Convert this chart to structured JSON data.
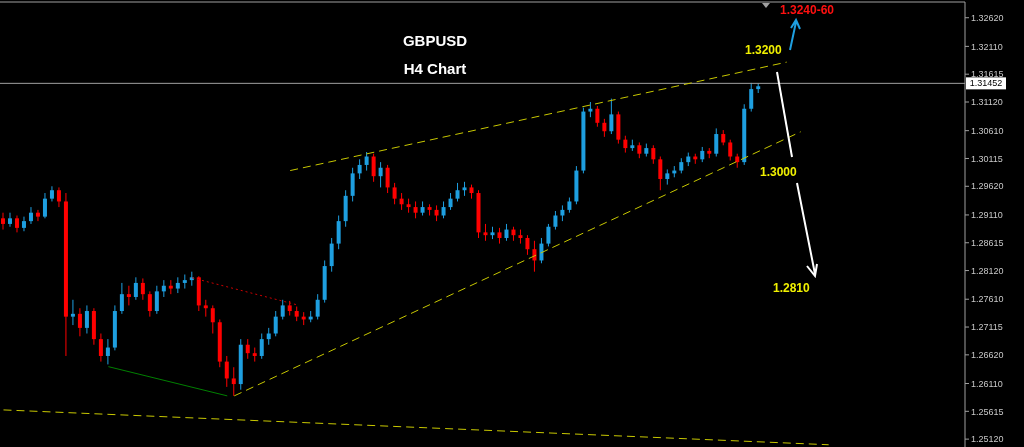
{
  "chart_data": {
    "type": "candlestick",
    "title": "GBPUSD",
    "subtitle": "H4 Chart",
    "categories": [
      null,
      null,
      null,
      null,
      null,
      null,
      null,
      null,
      null,
      null,
      null,
      null,
      null,
      null,
      null,
      null,
      null,
      null,
      null,
      null,
      null,
      null,
      null,
      null,
      null,
      null,
      null,
      null,
      null,
      null,
      null,
      null,
      null,
      null,
      null,
      null,
      null,
      null,
      null,
      null,
      null,
      null,
      null,
      null,
      null,
      null,
      null,
      null,
      null,
      null,
      null,
      null,
      null,
      null,
      null,
      null,
      null,
      null,
      null,
      null,
      null,
      null,
      null,
      null,
      null,
      null,
      null,
      null,
      null,
      null,
      null,
      null,
      null,
      null,
      null,
      null,
      null,
      null,
      null,
      null,
      null,
      null,
      null,
      null,
      null,
      null,
      null,
      null,
      null,
      null,
      null,
      null,
      null,
      null,
      null,
      null,
      null,
      null,
      null,
      null,
      null,
      null,
      null,
      null,
      null,
      null,
      null,
      null,
      null,
      null,
      null,
      null,
      null,
      null,
      null,
      null,
      null,
      null,
      null,
      null,
      null,
      null,
      null,
      null,
      null,
      null,
      null,
      null,
      null,
      null,
      null,
      null,
      null,
      null,
      null,
      null,
      null,
      null
    ],
    "ohlc": [
      [
        1.2905,
        1.2915,
        1.2885,
        1.2895
      ],
      [
        1.2895,
        1.2915,
        1.289,
        1.2905
      ],
      [
        1.2905,
        1.291,
        1.288,
        1.2888
      ],
      [
        1.2888,
        1.2908,
        1.2882,
        1.29
      ],
      [
        1.29,
        1.2925,
        1.2895,
        1.2915
      ],
      [
        1.2915,
        1.292,
        1.29,
        1.2908
      ],
      [
        1.2908,
        1.295,
        1.2905,
        1.294
      ],
      [
        1.294,
        1.2962,
        1.2935,
        1.2955
      ],
      [
        1.2955,
        1.296,
        1.2925,
        1.2935
      ],
      [
        1.2935,
        1.295,
        1.266,
        1.273
      ],
      [
        1.273,
        1.276,
        1.2715,
        1.2735
      ],
      [
        1.2735,
        1.2745,
        1.2695,
        1.271
      ],
      [
        1.271,
        1.275,
        1.27,
        1.274
      ],
      [
        1.274,
        1.2745,
        1.268,
        1.269
      ],
      [
        1.269,
        1.27,
        1.265,
        1.266
      ],
      [
        1.266,
        1.269,
        1.2645,
        1.2675
      ],
      [
        1.2675,
        1.275,
        1.267,
        1.274
      ],
      [
        1.274,
        1.279,
        1.2735,
        1.277
      ],
      [
        1.277,
        1.2785,
        1.275,
        1.2765
      ],
      [
        1.2765,
        1.28,
        1.276,
        1.279
      ],
      [
        1.279,
        1.2798,
        1.276,
        1.277
      ],
      [
        1.277,
        1.2775,
        1.273,
        1.274
      ],
      [
        1.274,
        1.2785,
        1.2735,
        1.2775
      ],
      [
        1.2775,
        1.2795,
        1.2765,
        1.2785
      ],
      [
        1.2785,
        1.2795,
        1.277,
        1.278
      ],
      [
        1.278,
        1.28,
        1.2772,
        1.279
      ],
      [
        1.279,
        1.2805,
        1.278,
        1.2795
      ],
      [
        1.2795,
        1.281,
        1.2785,
        1.28
      ],
      [
        1.28,
        1.2802,
        1.274,
        1.275
      ],
      [
        1.275,
        1.276,
        1.273,
        1.2745
      ],
      [
        1.2745,
        1.275,
        1.27,
        1.272
      ],
      [
        1.272,
        1.2725,
        1.264,
        1.265
      ],
      [
        1.265,
        1.266,
        1.2605,
        1.262
      ],
      [
        1.262,
        1.264,
        1.2589,
        1.261
      ],
      [
        1.261,
        1.269,
        1.26,
        1.268
      ],
      [
        1.268,
        1.269,
        1.2655,
        1.2665
      ],
      [
        1.2665,
        1.2675,
        1.265,
        1.266
      ],
      [
        1.266,
        1.27,
        1.2655,
        1.269
      ],
      [
        1.269,
        1.271,
        1.268,
        1.27
      ],
      [
        1.27,
        1.274,
        1.2695,
        1.273
      ],
      [
        1.273,
        1.276,
        1.2725,
        1.275
      ],
      [
        1.275,
        1.2758,
        1.2732,
        1.274
      ],
      [
        1.274,
        1.2748,
        1.2722,
        1.273
      ],
      [
        1.273,
        1.2738,
        1.2715,
        1.2725
      ],
      [
        1.2725,
        1.274,
        1.272,
        1.273
      ],
      [
        1.273,
        1.277,
        1.2725,
        1.276
      ],
      [
        1.276,
        1.283,
        1.2755,
        1.282
      ],
      [
        1.282,
        1.287,
        1.281,
        1.286
      ],
      [
        1.286,
        1.291,
        1.285,
        1.29
      ],
      [
        1.29,
        1.2955,
        1.289,
        1.2945
      ],
      [
        1.2945,
        1.2995,
        1.2935,
        1.2985
      ],
      [
        1.2985,
        1.301,
        1.2975,
        1.3
      ],
      [
        1.3,
        1.3023,
        1.299,
        1.3015
      ],
      [
        1.3015,
        1.302,
        1.297,
        1.298
      ],
      [
        1.298,
        1.3005,
        1.296,
        1.2995
      ],
      [
        1.2995,
        1.3,
        1.295,
        1.296
      ],
      [
        1.296,
        1.2968,
        1.293,
        1.294
      ],
      [
        1.294,
        1.295,
        1.292,
        1.293
      ],
      [
        1.293,
        1.294,
        1.2915,
        1.2925
      ],
      [
        1.2925,
        1.2935,
        1.2905,
        1.2915
      ],
      [
        1.2915,
        1.2935,
        1.291,
        1.2925
      ],
      [
        1.2925,
        1.293,
        1.291,
        1.292
      ],
      [
        1.292,
        1.2928,
        1.29,
        1.291
      ],
      [
        1.291,
        1.2935,
        1.2905,
        1.2925
      ],
      [
        1.2925,
        1.295,
        1.292,
        1.294
      ],
      [
        1.294,
        1.2968,
        1.2935,
        1.2955
      ],
      [
        1.2955,
        1.297,
        1.2945,
        1.296
      ],
      [
        1.296,
        1.2965,
        1.294,
        1.295
      ],
      [
        1.295,
        1.2955,
        1.287,
        1.288
      ],
      [
        1.288,
        1.2895,
        1.2865,
        1.2875
      ],
      [
        1.2875,
        1.289,
        1.2868,
        1.288
      ],
      [
        1.288,
        1.2888,
        1.286,
        1.287
      ],
      [
        1.287,
        1.2895,
        1.2865,
        1.2885
      ],
      [
        1.2885,
        1.289,
        1.2865,
        1.2875
      ],
      [
        1.2875,
        1.2885,
        1.286,
        1.287
      ],
      [
        1.287,
        1.2875,
        1.284,
        1.285
      ],
      [
        1.285,
        1.2865,
        1.281,
        1.283
      ],
      [
        1.283,
        1.287,
        1.2825,
        1.286
      ],
      [
        1.286,
        1.2895,
        1.2855,
        1.289
      ],
      [
        1.289,
        1.2918,
        1.2885,
        1.291
      ],
      [
        1.291,
        1.2928,
        1.29,
        1.292
      ],
      [
        1.292,
        1.2942,
        1.2915,
        1.2935
      ],
      [
        1.2935,
        1.2998,
        1.293,
        1.299
      ],
      [
        1.299,
        1.3102,
        1.2985,
        1.3095
      ],
      [
        1.3095,
        1.3112,
        1.3085,
        1.31
      ],
      [
        1.31,
        1.3105,
        1.3068,
        1.3075
      ],
      [
        1.3075,
        1.3082,
        1.305,
        1.306
      ],
      [
        1.306,
        1.3118,
        1.3055,
        1.309
      ],
      [
        1.309,
        1.3095,
        1.3038,
        1.3045
      ],
      [
        1.3045,
        1.3052,
        1.3022,
        1.303
      ],
      [
        1.303,
        1.3045,
        1.3025,
        1.3035
      ],
      [
        1.3035,
        1.304,
        1.3012,
        1.302
      ],
      [
        1.302,
        1.3038,
        1.3015,
        1.303
      ],
      [
        1.303,
        1.3035,
        1.3002,
        1.301
      ],
      [
        1.301,
        1.3015,
        1.2955,
        1.2975
      ],
      [
        1.2975,
        1.2992,
        1.2965,
        1.2985
      ],
      [
        1.2985,
        1.2998,
        1.2978,
        1.299
      ],
      [
        1.299,
        1.3012,
        1.2985,
        1.3005
      ],
      [
        1.3005,
        1.3022,
        1.2998,
        1.3015
      ],
      [
        1.3015,
        1.302,
        1.3002,
        1.301
      ],
      [
        1.301,
        1.3032,
        1.3005,
        1.3025
      ],
      [
        1.3025,
        1.303,
        1.3012,
        1.302
      ],
      [
        1.302,
        1.3065,
        1.3015,
        1.3055
      ],
      [
        1.3055,
        1.3062,
        1.3035,
        1.304
      ],
      [
        1.304,
        1.3045,
        1.3008,
        1.3015
      ],
      [
        1.3015,
        1.302,
        1.2995,
        1.3005
      ],
      [
        1.3005,
        1.3108,
        1.3,
        1.31
      ],
      [
        1.31,
        1.3146,
        1.3095,
        1.3135
      ],
      [
        1.3135,
        1.3145,
        1.3128,
        1.314
      ],
      null,
      null,
      null,
      null,
      null,
      null,
      null,
      null,
      null,
      null,
      null,
      null,
      null,
      null,
      null,
      null,
      null,
      null,
      null,
      null,
      null,
      null,
      null,
      null,
      null,
      null,
      null,
      null,
      null
    ],
    "series": [
      {
        "type": "line",
        "color": "#c8c800",
        "line_style": "dashed",
        "values": [
          null,
          null,
          null,
          null,
          null,
          null,
          null,
          null,
          null,
          null,
          null,
          null,
          null,
          null,
          null,
          null,
          null,
          null,
          null,
          null,
          null,
          null,
          null,
          null,
          null,
          null,
          null,
          null,
          null,
          null,
          null,
          null,
          null,
          null,
          null,
          null,
          null,
          null,
          null,
          null,
          null,
          1.299,
          null,
          null,
          null,
          null,
          null,
          null,
          null,
          null,
          null,
          null,
          null,
          null,
          null,
          null,
          null,
          null,
          null,
          null,
          null,
          null,
          null,
          null,
          null,
          null,
          null,
          null,
          null,
          null,
          null,
          null,
          null,
          null,
          null,
          null,
          null,
          null,
          null,
          null,
          null,
          null,
          null,
          null,
          null,
          null,
          null,
          null,
          null,
          null,
          null,
          null,
          null,
          null,
          null,
          null,
          null,
          null,
          null,
          null,
          null,
          null,
          null,
          null,
          null,
          null,
          null,
          null,
          null,
          null,
          null,
          null,
          1.3183,
          null,
          null,
          null,
          null,
          null,
          null,
          null,
          null,
          null,
          null,
          null,
          null,
          null,
          null,
          null,
          null,
          null,
          null,
          null,
          null,
          null,
          null,
          null,
          null,
          null
        ]
      },
      {
        "type": "line",
        "color": "#c8c800",
        "line_style": "dashed",
        "values": [
          null,
          null,
          null,
          null,
          null,
          null,
          null,
          null,
          null,
          null,
          null,
          null,
          null,
          null,
          null,
          null,
          null,
          null,
          null,
          null,
          null,
          null,
          null,
          null,
          null,
          null,
          null,
          null,
          null,
          null,
          null,
          null,
          null,
          1.2589,
          null,
          null,
          null,
          null,
          null,
          null,
          null,
          null,
          null,
          null,
          null,
          null,
          null,
          null,
          null,
          null,
          null,
          null,
          null,
          null,
          null,
          null,
          null,
          null,
          null,
          null,
          null,
          null,
          null,
          null,
          null,
          null,
          null,
          null,
          null,
          null,
          null,
          null,
          null,
          null,
          null,
          null,
          null,
          null,
          null,
          null,
          null,
          null,
          null,
          null,
          null,
          null,
          null,
          null,
          null,
          null,
          null,
          null,
          null,
          null,
          null,
          null,
          null,
          null,
          null,
          null,
          null,
          null,
          null,
          null,
          null,
          null,
          null,
          null,
          null,
          null,
          null,
          null,
          null,
          null,
          1.3059,
          null,
          null,
          null,
          null,
          null,
          null,
          null,
          null,
          null,
          null,
          null,
          null,
          null,
          null,
          null,
          null,
          null,
          null,
          null,
          null,
          null,
          null,
          null
        ]
      },
      {
        "type": "line",
        "color": "#c8c800",
        "line_style": "dashed",
        "values": [
          1.2564,
          null,
          null,
          null,
          null,
          null,
          null,
          null,
          null,
          null,
          null,
          null,
          null,
          null,
          null,
          null,
          null,
          null,
          null,
          null,
          null,
          null,
          null,
          null,
          null,
          null,
          null,
          null,
          null,
          null,
          null,
          null,
          null,
          null,
          null,
          null,
          null,
          null,
          null,
          null,
          null,
          null,
          null,
          null,
          null,
          null,
          null,
          null,
          null,
          null,
          null,
          null,
          null,
          null,
          null,
          null,
          null,
          null,
          null,
          null,
          null,
          null,
          null,
          null,
          null,
          null,
          null,
          null,
          null,
          null,
          null,
          null,
          null,
          null,
          null,
          null,
          null,
          null,
          null,
          null,
          null,
          null,
          null,
          null,
          null,
          null,
          null,
          null,
          null,
          null,
          null,
          null,
          null,
          null,
          null,
          null,
          null,
          null,
          null,
          null,
          null,
          null,
          null,
          null,
          null,
          null,
          null,
          null,
          null,
          null,
          null,
          null,
          null,
          null,
          null,
          null,
          null,
          null,
          1.2502,
          null,
          null,
          null,
          null,
          null,
          null,
          null,
          null,
          null,
          null,
          null,
          null,
          null,
          null,
          null,
          null,
          null,
          null,
          null
        ]
      },
      {
        "type": "line",
        "color": "#cc0000",
        "line_style": "dotted",
        "values": [
          null,
          null,
          null,
          null,
          null,
          null,
          null,
          null,
          null,
          null,
          null,
          null,
          null,
          null,
          null,
          null,
          null,
          null,
          null,
          null,
          null,
          null,
          null,
          null,
          null,
          null,
          null,
          1.2799,
          null,
          null,
          null,
          null,
          null,
          null,
          null,
          null,
          null,
          null,
          null,
          null,
          null,
          null,
          1.2751,
          null,
          null,
          null,
          null,
          null,
          null,
          null,
          null,
          null,
          null,
          null,
          null,
          null,
          null,
          null,
          null,
          null,
          null,
          null,
          null,
          null,
          null,
          null,
          null,
          null,
          null,
          null,
          null,
          null,
          null,
          null,
          null,
          null,
          null,
          null,
          null,
          null,
          null,
          null,
          null,
          null,
          null,
          null,
          null,
          null,
          null,
          null,
          null,
          null,
          null,
          null,
          null,
          null,
          null,
          null,
          null,
          null,
          null,
          null,
          null,
          null,
          null,
          null,
          null,
          null,
          null,
          null,
          null,
          null,
          null,
          null,
          null,
          null,
          null,
          null,
          null,
          null,
          null,
          null,
          null,
          null,
          null,
          null,
          null,
          null,
          null,
          null,
          null,
          null,
          null,
          null,
          null,
          null,
          null,
          null
        ]
      },
      {
        "type": "line",
        "color": "#008000",
        "line_style": "solid",
        "values": [
          null,
          null,
          null,
          null,
          null,
          null,
          null,
          null,
          null,
          null,
          null,
          null,
          null,
          null,
          null,
          1.2641,
          null,
          null,
          null,
          null,
          null,
          null,
          null,
          null,
          null,
          null,
          null,
          null,
          null,
          null,
          null,
          null,
          1.2589,
          null,
          null,
          null,
          null,
          null,
          null,
          null,
          null,
          null,
          null,
          null,
          null,
          null,
          null,
          null,
          null,
          null,
          null,
          null,
          null,
          null,
          null,
          null,
          null,
          null,
          null,
          null,
          null,
          null,
          null,
          null,
          null,
          null,
          null,
          null,
          null,
          null,
          null,
          null,
          null,
          null,
          null,
          null,
          null,
          null,
          null,
          null,
          null,
          null,
          null,
          null,
          null,
          null,
          null,
          null,
          null,
          null,
          null,
          null,
          null,
          null,
          null,
          null,
          null,
          null,
          null,
          null,
          null,
          null,
          null,
          null,
          null,
          null,
          null,
          null,
          null,
          null,
          null,
          null,
          null,
          null,
          null,
          null,
          null,
          null,
          null,
          null,
          null,
          null,
          null,
          null,
          null,
          null,
          null,
          null,
          null,
          null,
          null,
          null,
          null,
          null,
          null,
          null,
          null,
          null
        ]
      }
    ],
    "ylim": [
      1.2498,
      1.329
    ],
    "yticks": [
      {
        "value": 1.3262,
        "label": "1.32620"
      },
      {
        "value": 1.3211,
        "label": "1.32110"
      },
      {
        "value": 1.31615,
        "label": "1.31615"
      },
      {
        "value": 1.3112,
        "label": "1.31120"
      },
      {
        "value": 1.3061,
        "label": "1.30610"
      },
      {
        "value": 1.30115,
        "label": "1.30115"
      },
      {
        "value": 1.2962,
        "label": "1.29620"
      },
      {
        "value": 1.2911,
        "label": "1.29110"
      },
      {
        "value": 1.28615,
        "label": "1.28615"
      },
      {
        "value": 1.2812,
        "label": "1.28120"
      },
      {
        "value": 1.2761,
        "label": "1.27610"
      },
      {
        "value": 1.27115,
        "label": "1.27115"
      },
      {
        "value": 1.2662,
        "label": "1.26620"
      },
      {
        "value": 1.2611,
        "label": "1.26110"
      },
      {
        "value": 1.25615,
        "label": "1.25615"
      },
      {
        "value": 1.2512,
        "label": "1.25120"
      }
    ],
    "ref_lines": [
      {
        "axis": "y",
        "value": 1.31452,
        "label": "1.31452",
        "color": "#a0a0a0",
        "line_style": "solid"
      }
    ],
    "annotations": [
      "1.3240-60",
      "1.3200",
      "1.3000",
      "1.2810"
    ],
    "tick_labels": "y"
  }
}
